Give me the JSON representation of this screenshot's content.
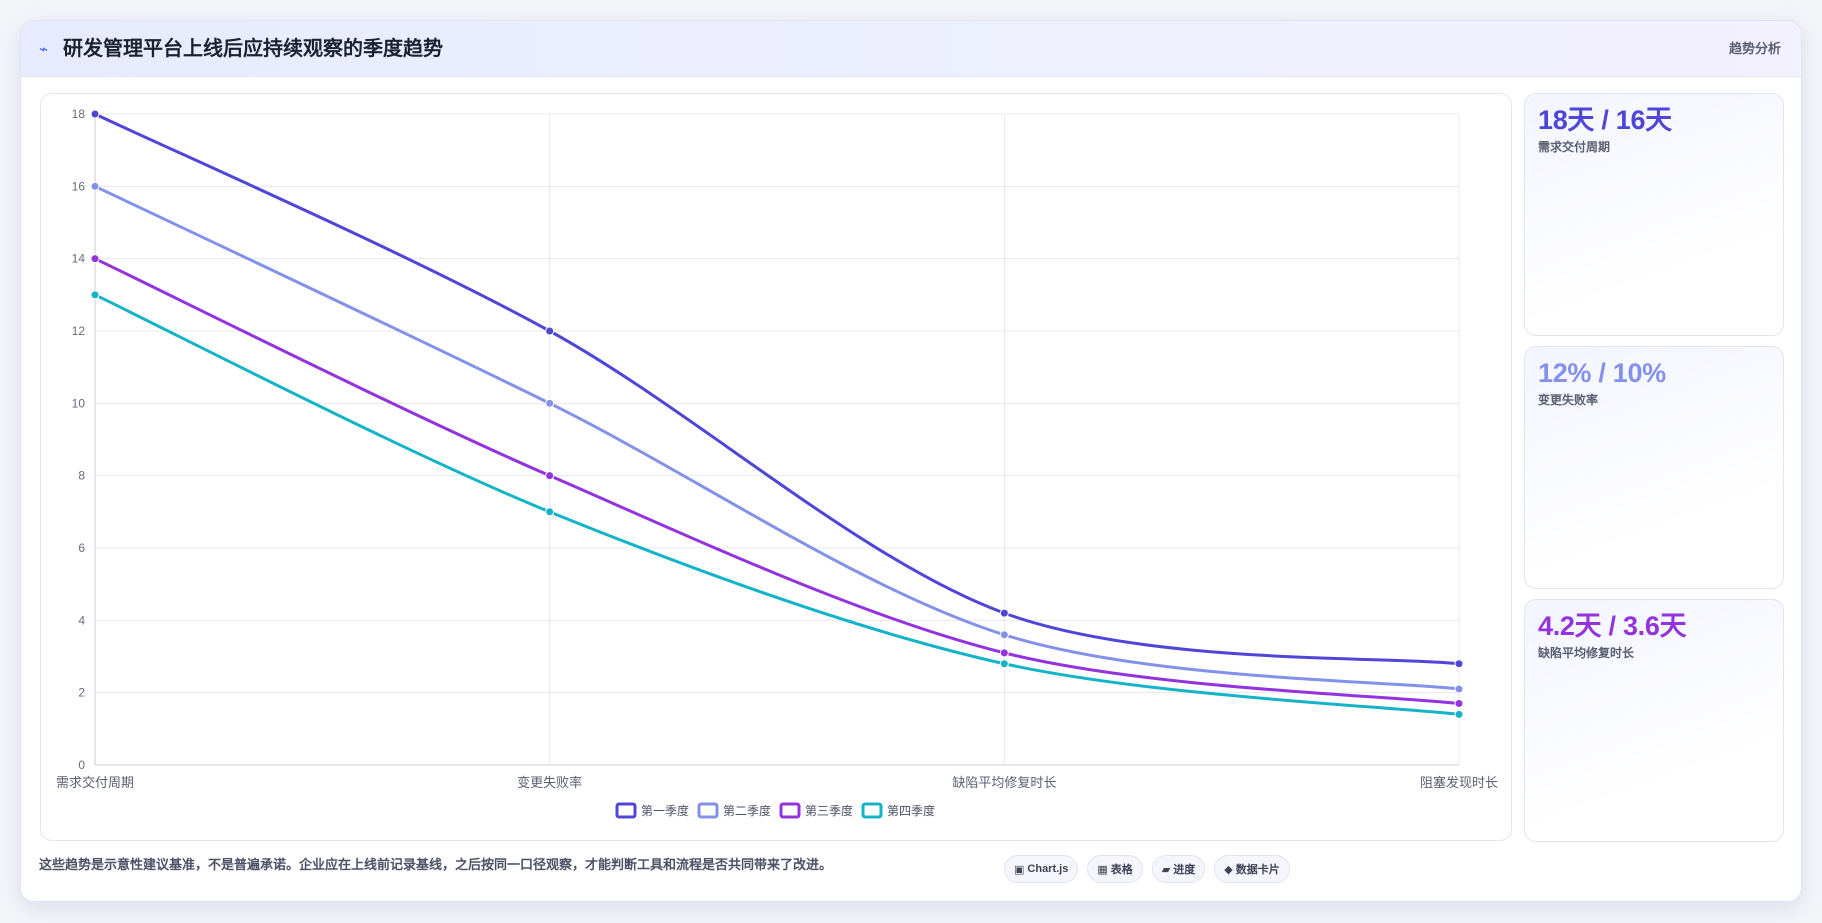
{
  "header": {
    "icon": "trend-icon",
    "title": "研发管理平台上线后应持续观察的季度趋势",
    "tag": "趋势分析"
  },
  "chart_data": {
    "type": "line",
    "categories": [
      "需求交付周期",
      "变更失败率",
      "缺陷平均修复时长",
      "阻塞发现时长"
    ],
    "ylim": [
      0,
      18
    ],
    "yticks": [
      0,
      2,
      4,
      6,
      8,
      10,
      12,
      14,
      16,
      18
    ],
    "grid": true,
    "legend_position": "bottom",
    "series": [
      {
        "name": "第一季度",
        "color": "#4f46d8",
        "values": [
          18,
          12,
          4.2,
          2.8
        ]
      },
      {
        "name": "第二季度",
        "color": "#8391ea",
        "values": [
          16,
          10,
          3.6,
          2.1
        ]
      },
      {
        "name": "第三季度",
        "color": "#9333dd",
        "values": [
          14,
          8,
          3.1,
          1.7
        ]
      },
      {
        "name": "第四季度",
        "color": "#14b3c8",
        "values": [
          13,
          7,
          2.8,
          1.4
        ]
      }
    ]
  },
  "kpis": [
    {
      "value": "18天 / 16天",
      "label": "需求交付周期",
      "color": "#4f46d8"
    },
    {
      "value": "12% / 10%",
      "label": "变更失败率",
      "color": "#8391ea"
    },
    {
      "value": "4.2天 / 3.6天",
      "label": "缺陷平均修复时长",
      "color": "#9333dd"
    }
  ],
  "footnote": "这些趋势是示意性建议基准，不是普遍承诺。企业应在上线前记录基线，之后按同一口径观察，才能判断工具和流程是否共同带来了改进。",
  "pills": [
    {
      "icon": "chart-icon",
      "glyph": "▣",
      "label": "Chart.js"
    },
    {
      "icon": "table-icon",
      "glyph": "▦",
      "label": "表格"
    },
    {
      "icon": "progress-icon",
      "glyph": "▰",
      "label": "进度"
    },
    {
      "icon": "card-icon",
      "glyph": "◆",
      "label": "数据卡片"
    }
  ]
}
